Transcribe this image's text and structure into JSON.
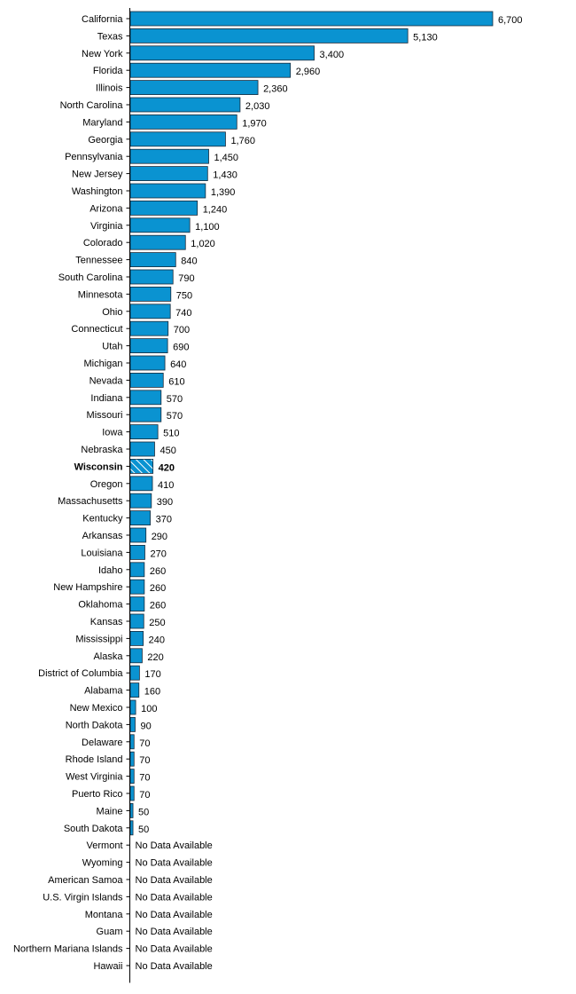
{
  "chart_data": {
    "type": "bar",
    "orientation": "horizontal",
    "title": "",
    "xlabel": "",
    "ylabel": "",
    "xlim": [
      0,
      6700
    ],
    "bar_color": "#0a93d1",
    "highlight_category": "Wisconsin",
    "highlight_pattern": "diagonal-hatch",
    "no_data_label": "No Data Available",
    "categories": [
      "California",
      "Texas",
      "New York",
      "Florida",
      "Illinois",
      "North Carolina",
      "Maryland",
      "Georgia",
      "Pennsylvania",
      "New Jersey",
      "Washington",
      "Arizona",
      "Virginia",
      "Colorado",
      "Tennessee",
      "South Carolina",
      "Minnesota",
      "Ohio",
      "Connecticut",
      "Utah",
      "Michigan",
      "Nevada",
      "Indiana",
      "Missouri",
      "Iowa",
      "Nebraska",
      "Wisconsin",
      "Oregon",
      "Massachusetts",
      "Kentucky",
      "Arkansas",
      "Louisiana",
      "Idaho",
      "New Hampshire",
      "Oklahoma",
      "Kansas",
      "Mississippi",
      "Alaska",
      "District of Columbia",
      "Alabama",
      "New Mexico",
      "North Dakota",
      "Delaware",
      "Rhode Island",
      "West Virginia",
      "Puerto Rico",
      "Maine",
      "South Dakota",
      "Vermont",
      "Wyoming",
      "American Samoa",
      "U.S. Virgin Islands",
      "Montana",
      "Guam",
      "Northern Mariana Islands",
      "Hawaii"
    ],
    "values": [
      6700,
      5130,
      3400,
      2960,
      2360,
      2030,
      1970,
      1760,
      1450,
      1430,
      1390,
      1240,
      1100,
      1020,
      840,
      790,
      750,
      740,
      700,
      690,
      640,
      610,
      570,
      570,
      510,
      450,
      420,
      410,
      390,
      370,
      290,
      270,
      260,
      260,
      260,
      250,
      240,
      220,
      170,
      160,
      100,
      90,
      70,
      70,
      70,
      70,
      50,
      50,
      null,
      null,
      null,
      null,
      null,
      null,
      null,
      null
    ],
    "value_labels": [
      "6,700",
      "5,130",
      "3,400",
      "2,960",
      "2,360",
      "2,030",
      "1,970",
      "1,760",
      "1,450",
      "1,430",
      "1,390",
      "1,240",
      "1,100",
      "1,020",
      "840",
      "790",
      "750",
      "740",
      "700",
      "690",
      "640",
      "610",
      "570",
      "570",
      "510",
      "450",
      "420",
      "410",
      "390",
      "370",
      "290",
      "270",
      "260",
      "260",
      "260",
      "250",
      "240",
      "220",
      "170",
      "160",
      "100",
      "90",
      "70",
      "70",
      "70",
      "70",
      "50",
      "50",
      "No Data Available",
      "No Data Available",
      "No Data Available",
      "No Data Available",
      "No Data Available",
      "No Data Available",
      "No Data Available",
      "No Data Available"
    ]
  }
}
